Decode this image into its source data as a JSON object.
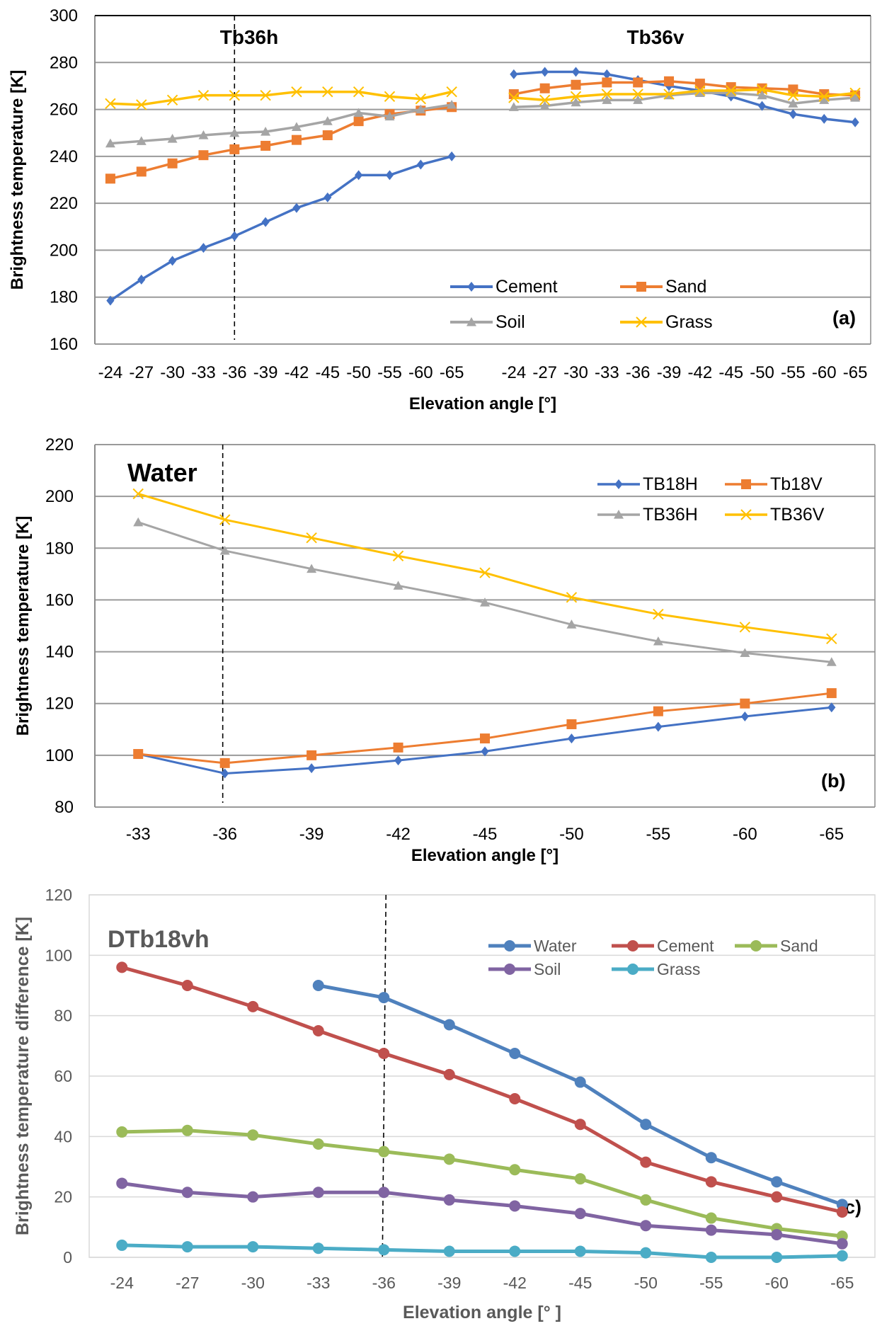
{
  "chart_data": [
    {
      "type": "line",
      "panel_label": "(a)",
      "group_titles": [
        "Tb36h",
        "Tb36v"
      ],
      "categories": [
        "-24",
        "-27",
        "-30",
        "-33",
        "-36",
        "-39",
        "-42",
        "-45",
        "-50",
        "-55",
        "-60",
        "-65"
      ],
      "xlabel": "Elevation angle [°]",
      "ylabel": "Brightness temperature [K]",
      "ylim": [
        160,
        300
      ],
      "yticks": [
        160,
        180,
        200,
        220,
        240,
        260,
        280,
        300
      ],
      "grid": true,
      "legend": "bottom-right",
      "dashed_reference": "-36",
      "series": [
        {
          "name": "Cement",
          "color": "#4472C4",
          "marker": "diamond",
          "h": [
            178.5,
            187.5,
            195.5,
            201,
            206,
            212,
            218,
            222.5,
            232,
            232,
            236.5,
            240
          ],
          "v": [
            275,
            276,
            276,
            275,
            272.5,
            270,
            268,
            265.5,
            261.5,
            258,
            256,
            254.5
          ]
        },
        {
          "name": "Sand",
          "color": "#ED7D31",
          "marker": "square",
          "h": [
            230.5,
            233.5,
            237,
            240.5,
            243,
            244.5,
            247,
            249,
            255,
            258,
            259.5,
            261
          ],
          "v": [
            266.5,
            269,
            270.5,
            271.5,
            271.5,
            272,
            271,
            269.5,
            269,
            268.5,
            266.5,
            266
          ]
        },
        {
          "name": "Soil",
          "color": "#A5A5A5",
          "marker": "triangle",
          "h": [
            245.5,
            246.5,
            247.5,
            249,
            250,
            250.5,
            252.5,
            255,
            258.5,
            257,
            260,
            262
          ],
          "v": [
            261,
            261.5,
            263,
            264,
            264,
            266,
            267,
            267,
            266,
            262.5,
            264,
            265
          ]
        },
        {
          "name": "Grass",
          "color": "#FFC000",
          "marker": "x",
          "h": [
            262.5,
            262,
            264,
            266,
            266,
            266,
            267.5,
            267.5,
            267.5,
            265.5,
            264.5,
            267.5
          ],
          "v": [
            265,
            264,
            265.5,
            266.5,
            266.5,
            266.5,
            268,
            268,
            268.5,
            266,
            265.5,
            267
          ]
        }
      ]
    },
    {
      "type": "line",
      "panel_label": "(b)",
      "title": "Water",
      "categories": [
        "-33",
        "-36",
        "-39",
        "-42",
        "-45",
        "-50",
        "-55",
        "-60",
        "-65"
      ],
      "xlabel": "Elevation angle [°]",
      "ylabel": "Brightness temperature [K]",
      "ylim": [
        80,
        220
      ],
      "yticks": [
        80,
        100,
        120,
        140,
        160,
        180,
        200,
        220
      ],
      "grid": true,
      "legend": "top-right",
      "dashed_reference": "-36",
      "series": [
        {
          "name": "TB18H",
          "color": "#4472C4",
          "marker": "diamond",
          "values": [
            100.5,
            93,
            95,
            98,
            101.5,
            106.5,
            111,
            115,
            118.5
          ]
        },
        {
          "name": "Tb18V",
          "color": "#ED7D31",
          "marker": "square",
          "values": [
            100.5,
            97,
            100,
            103,
            106.5,
            112,
            117,
            120,
            124
          ]
        },
        {
          "name": "TB36H",
          "color": "#A5A5A5",
          "marker": "triangle",
          "values": [
            190,
            179,
            172,
            165.5,
            159,
            150.5,
            144,
            139.5,
            136
          ]
        },
        {
          "name": "TB36V",
          "color": "#FFC000",
          "marker": "x",
          "values": [
            201,
            191,
            184,
            177,
            170.5,
            161,
            154.5,
            149.5,
            145
          ]
        }
      ]
    },
    {
      "type": "line",
      "panel_label": "(c)",
      "title": "DTb18vh",
      "categories": [
        "-24",
        "-27",
        "-30",
        "-33",
        "-36",
        "-39",
        "-42",
        "-45",
        "-50",
        "-55",
        "-60",
        "-65"
      ],
      "xlabel": "Elevation angle [°  ]",
      "ylabel": "Brightness temperature difference [K]",
      "ylim": [
        0,
        120
      ],
      "yticks": [
        0,
        20,
        40,
        60,
        80,
        100,
        120
      ],
      "grid": true,
      "legend": "top-right",
      "dashed_reference": "-36",
      "series": [
        {
          "name": "Water",
          "color": "#4F81BD",
          "marker": "circle",
          "values": [
            null,
            null,
            null,
            90,
            86,
            77,
            67.5,
            58,
            44,
            33,
            25,
            17.5
          ]
        },
        {
          "name": "Cement",
          "color": "#C0504D",
          "marker": "circle",
          "values": [
            96,
            90,
            83,
            75,
            67.5,
            60.5,
            52.5,
            44,
            31.5,
            25,
            20,
            15
          ]
        },
        {
          "name": "Sand",
          "color": "#9BBB59",
          "marker": "circle",
          "values": [
            41.5,
            42,
            40.5,
            37.5,
            35,
            32.5,
            29,
            26,
            19,
            13,
            9.5,
            7
          ]
        },
        {
          "name": "Soil",
          "color": "#8064A2",
          "marker": "circle",
          "values": [
            24.5,
            21.5,
            20,
            21.5,
            21.5,
            19,
            17,
            14.5,
            10.5,
            9,
            7.5,
            4.5
          ]
        },
        {
          "name": "Grass",
          "color": "#4BACC6",
          "marker": "circle",
          "values": [
            4,
            3.5,
            3.5,
            3,
            2.5,
            2,
            2,
            2,
            1.5,
            0,
            0,
            0.5
          ]
        }
      ]
    }
  ]
}
